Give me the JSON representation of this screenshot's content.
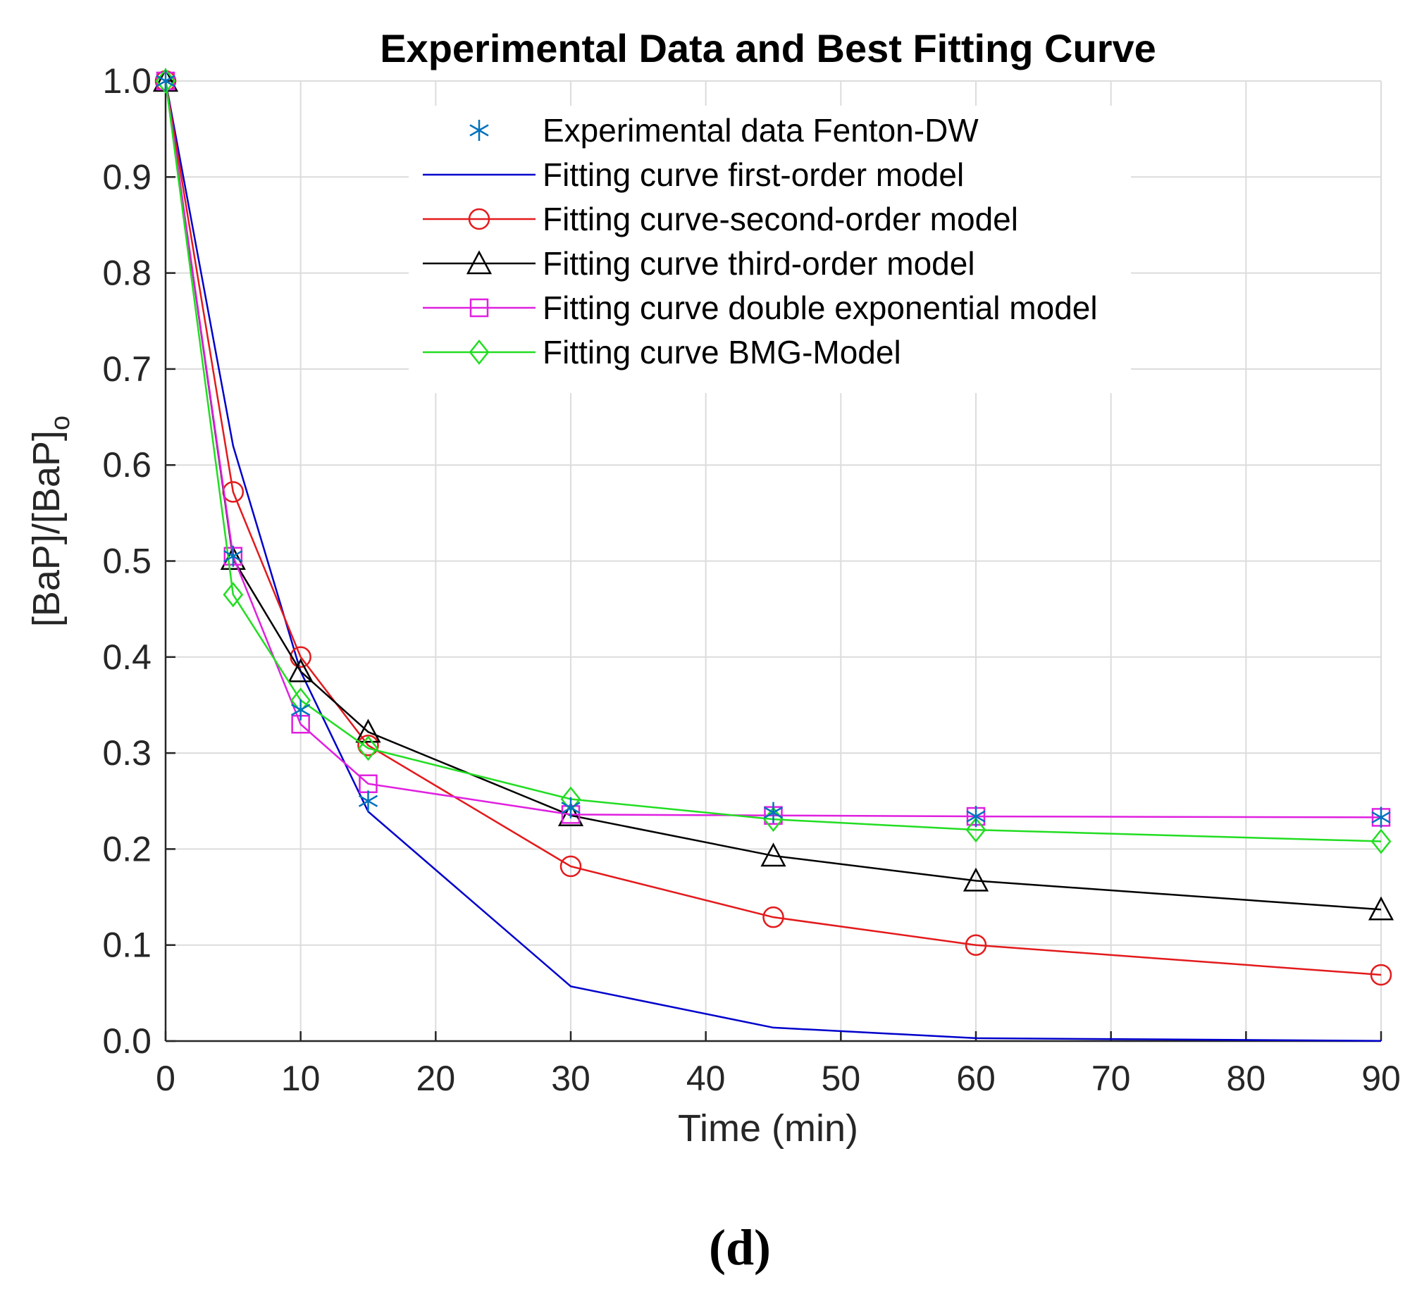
{
  "chart_data": {
    "type": "line",
    "title": "Experimental Data and Best Fitting Curve",
    "xlabel": "Time (min)",
    "ylabel": "[BaP]/[BaP]",
    "ylabel_subscript": "o",
    "xlim": [
      0,
      90
    ],
    "ylim": [
      0,
      1
    ],
    "grid": true,
    "legend_position": "top-center",
    "x_ticks": [
      0,
      10,
      20,
      30,
      40,
      50,
      60,
      70,
      80,
      90
    ],
    "x_tick_labels": [
      "0",
      "10",
      "20",
      "30",
      "40",
      "50",
      "60",
      "70",
      "80",
      "90"
    ],
    "y_ticks": [
      0,
      0.1,
      0.2,
      0.3,
      0.4,
      0.5,
      0.6,
      0.7,
      0.8,
      0.9,
      1.0
    ],
    "y_tick_labels": [
      "0.0",
      "0.1",
      "0.2",
      "0.3",
      "0.4",
      "0.5",
      "0.6",
      "0.7",
      "0.8",
      "0.9",
      "1.0"
    ],
    "x": [
      0,
      5,
      10,
      15,
      30,
      45,
      60,
      90
    ],
    "series": [
      {
        "name": "Experimental data Fenton-DW",
        "color": "#0072BD",
        "marker": "asterisk",
        "line": false,
        "values": [
          1.0,
          0.505,
          0.345,
          0.25,
          0.243,
          0.238,
          0.234,
          0.233
        ]
      },
      {
        "name": "Fitting curve first-order model",
        "color": "#0000CC",
        "marker": "none",
        "line": true,
        "values": [
          1.0,
          0.62,
          0.385,
          0.239,
          0.057,
          0.014,
          0.003,
          0.0002
        ]
      },
      {
        "name": "Fitting curve-second-order model",
        "color": "#E31A1C",
        "marker": "circle",
        "line": true,
        "values": [
          1.0,
          0.572,
          0.4,
          0.308,
          0.182,
          0.129,
          0.1,
          0.069
        ]
      },
      {
        "name": "Fitting curve third-order model",
        "color": "#000000",
        "marker": "triangle",
        "line": true,
        "values": [
          1.0,
          0.502,
          0.385,
          0.322,
          0.235,
          0.193,
          0.167,
          0.137
        ]
      },
      {
        "name": "Fitting curve double exponential model",
        "color": "#E020E0",
        "marker": "square",
        "line": true,
        "values": [
          1.0,
          0.505,
          0.33,
          0.268,
          0.236,
          0.235,
          0.234,
          0.233
        ]
      },
      {
        "name": "Fitting curve BMG-Model",
        "color": "#22DD22",
        "marker": "diamond",
        "line": true,
        "values": [
          1.0,
          0.465,
          0.355,
          0.305,
          0.252,
          0.231,
          0.22,
          0.208
        ]
      }
    ]
  },
  "caption": "(d)"
}
